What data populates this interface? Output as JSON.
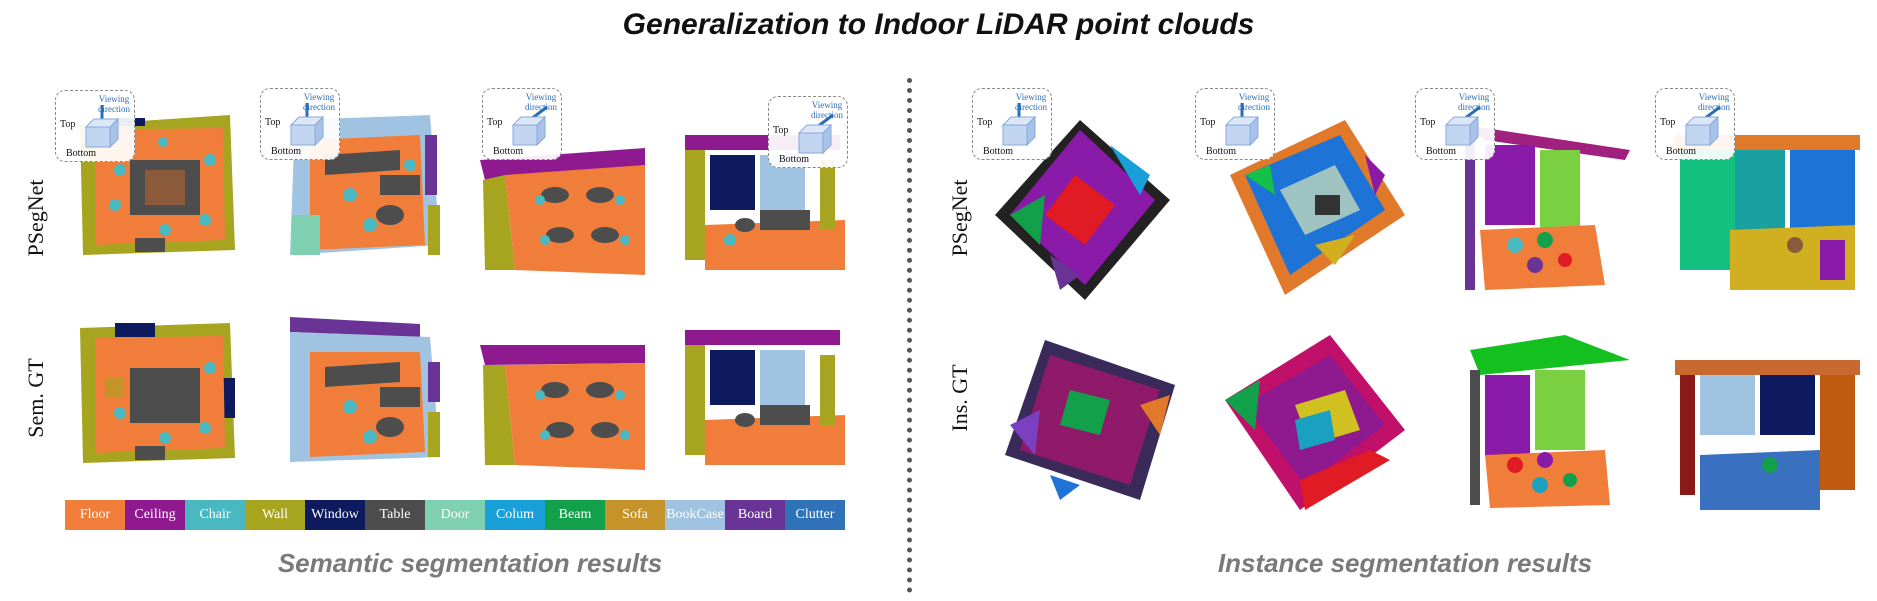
{
  "title": "Generalization to Indoor LiDAR point clouds",
  "semantic": {
    "caption": "Semantic segmentation results",
    "row_labels": [
      "PSegNet",
      "Sem. GT"
    ]
  },
  "instance": {
    "caption": "Instance segmentation results",
    "row_labels": [
      "PSegNet",
      "Ins. GT"
    ]
  },
  "view_indicator": {
    "viewing": "Viewing",
    "direction": "direction",
    "top": "Top",
    "bottom": "Bottom"
  },
  "legend": [
    {
      "label": "Floor",
      "color": "#f07e3a"
    },
    {
      "label": "Ceiling",
      "color": "#8f1a8f"
    },
    {
      "label": "Chair",
      "color": "#4ab8c0"
    },
    {
      "label": "Wall",
      "color": "#a7a51f"
    },
    {
      "label": "Window",
      "color": "#0d1a5e"
    },
    {
      "label": "Table",
      "color": "#4d4d4d"
    },
    {
      "label": "Door",
      "color": "#7fd0b0"
    },
    {
      "label": "Colum",
      "color": "#1aa0d8"
    },
    {
      "label": "Beam",
      "color": "#13a04a"
    },
    {
      "label": "Sofa",
      "color": "#c4942a"
    },
    {
      "label": "BookCase",
      "color": "#9fc3e0"
    },
    {
      "label": "Board",
      "color": "#6a3496"
    },
    {
      "label": "Clutter",
      "color": "#2f72b8"
    }
  ]
}
